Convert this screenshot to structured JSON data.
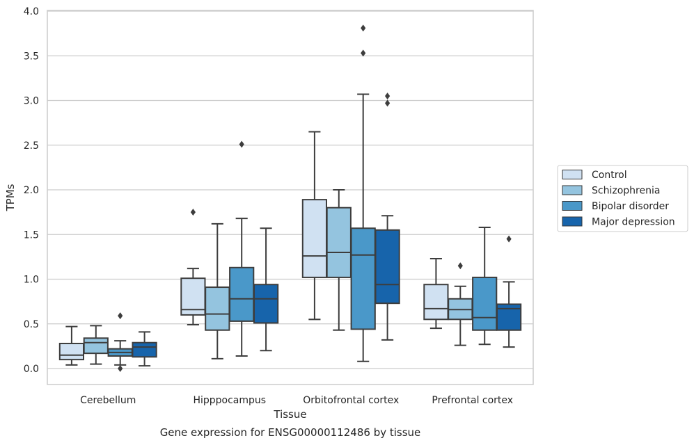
{
  "chart_data": {
    "type": "box",
    "title": "",
    "caption": "Gene expression for ENSG00000112486 by tissue",
    "xlabel": "Tissue",
    "ylabel": "TPMs",
    "ylim": [
      -0.18,
      4.0
    ],
    "yticks": [
      "0.0",
      "0.5",
      "1.0",
      "1.5",
      "2.0",
      "2.5",
      "3.0",
      "3.5",
      "4.0"
    ],
    "grid": "horizontal",
    "legend_position": "right",
    "categories": [
      "Cerebellum",
      "Hipppocampus",
      "Orbitofrontal cortex",
      "Prefrontal cortex"
    ],
    "series": [
      {
        "name": "Control",
        "color": "#d0e1f2",
        "boxes": [
          {
            "whislo": 0.04,
            "q1": 0.1,
            "med": 0.15,
            "q3": 0.28,
            "whishi": 0.47,
            "fliers": []
          },
          {
            "whislo": 0.49,
            "q1": 0.6,
            "med": 0.66,
            "q3": 1.01,
            "whishi": 1.12,
            "fliers": [
              1.75
            ]
          },
          {
            "whislo": 0.55,
            "q1": 1.02,
            "med": 1.26,
            "q3": 1.89,
            "whishi": 2.65,
            "fliers": []
          },
          {
            "whislo": 0.45,
            "q1": 0.55,
            "med": 0.67,
            "q3": 0.94,
            "whishi": 1.23,
            "fliers": []
          }
        ]
      },
      {
        "name": "Schizophrenia",
        "color": "#94c4df",
        "boxes": [
          {
            "whislo": 0.05,
            "q1": 0.17,
            "med": 0.29,
            "q3": 0.34,
            "whishi": 0.48,
            "fliers": []
          },
          {
            "whislo": 0.11,
            "q1": 0.43,
            "med": 0.61,
            "q3": 0.91,
            "whishi": 1.62,
            "fliers": []
          },
          {
            "whislo": 0.43,
            "q1": 1.02,
            "med": 1.3,
            "q3": 1.8,
            "whishi": 2.0,
            "fliers": []
          },
          {
            "whislo": 0.26,
            "q1": 0.55,
            "med": 0.66,
            "q3": 0.78,
            "whishi": 0.92,
            "fliers": [
              1.15
            ]
          }
        ]
      },
      {
        "name": "Bipolar disorder",
        "color": "#4a98c9",
        "boxes": [
          {
            "whislo": 0.04,
            "q1": 0.14,
            "med": 0.18,
            "q3": 0.22,
            "whishi": 0.31,
            "fliers": [
              0.0,
              0.59
            ]
          },
          {
            "whislo": 0.14,
            "q1": 0.53,
            "med": 0.78,
            "q3": 1.13,
            "whishi": 1.68,
            "fliers": [
              2.51
            ]
          },
          {
            "whislo": 0.08,
            "q1": 0.44,
            "med": 1.27,
            "q3": 1.57,
            "whishi": 3.07,
            "fliers": [
              3.53,
              3.81
            ]
          },
          {
            "whislo": 0.27,
            "q1": 0.43,
            "med": 0.57,
            "q3": 1.02,
            "whishi": 1.58,
            "fliers": []
          }
        ]
      },
      {
        "name": "Major depression",
        "color": "#1764ab",
        "boxes": [
          {
            "whislo": 0.03,
            "q1": 0.13,
            "med": 0.24,
            "q3": 0.29,
            "whishi": 0.41,
            "fliers": []
          },
          {
            "whislo": 0.2,
            "q1": 0.51,
            "med": 0.78,
            "q3": 0.94,
            "whishi": 1.57,
            "fliers": []
          },
          {
            "whislo": 0.32,
            "q1": 0.73,
            "med": 0.94,
            "q3": 1.55,
            "whishi": 1.71,
            "fliers": [
              2.97,
              3.05
            ]
          },
          {
            "whislo": 0.24,
            "q1": 0.43,
            "med": 0.67,
            "q3": 0.72,
            "whishi": 0.97,
            "fliers": [
              1.45
            ]
          }
        ]
      }
    ]
  }
}
